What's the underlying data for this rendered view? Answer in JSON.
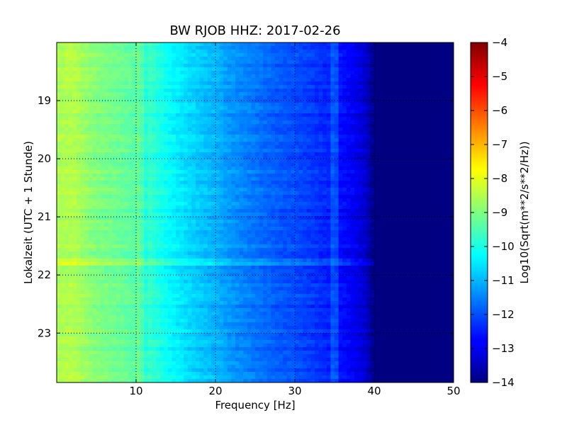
{
  "chart_data": {
    "type": "heatmap",
    "title": "BW RJOB HHZ: 2017-02-26",
    "xlabel": "Frequency [Hz]",
    "ylabel": "Lokalzeit (UTC + 1 Stunde)",
    "xlim": [
      0,
      50
    ],
    "ylim": [
      18,
      23.85
    ],
    "y_inverted": true,
    "grid": true,
    "colormap": "jet",
    "x_ticks": [
      10,
      20,
      30,
      40,
      50
    ],
    "y_ticks": [
      19,
      20,
      21,
      22,
      23
    ],
    "colorbar": {
      "label": "Log10(Sqrt(m**2/s**2/Hz))",
      "min": -14,
      "max": -4,
      "ticks": [
        -14,
        -13,
        -12,
        -11,
        -10,
        -9,
        -8,
        -7,
        -6,
        -5,
        -4
      ]
    },
    "spectrum_profile": {
      "frequency_hz": [
        0,
        2,
        5,
        8,
        10,
        12,
        15,
        18,
        20,
        22,
        25,
        28,
        30,
        33,
        35,
        37,
        38,
        39,
        40,
        50
      ],
      "level": [
        -8.6,
        -8.5,
        -9.0,
        -9.2,
        -9.4,
        -9.8,
        -10.4,
        -10.8,
        -11.0,
        -11.3,
        -11.6,
        -11.9,
        -12.0,
        -12.3,
        -12.5,
        -12.8,
        -13.0,
        -13.3,
        -14.0,
        -14.0
      ]
    },
    "annotations_visible": {
      "line_near_34_5_hz": "thin spectral line around 34–35 Hz",
      "band_near_21_75_h": "horizontal lighter band around 21.75 h"
    }
  }
}
